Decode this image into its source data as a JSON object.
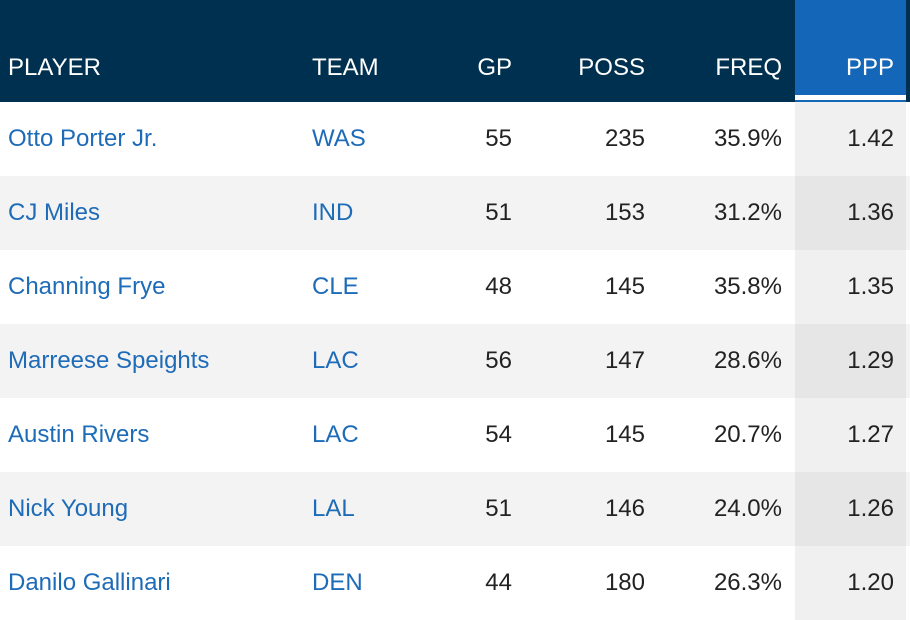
{
  "table": {
    "columns": {
      "player": "PLAYER",
      "team": "TEAM",
      "gp": "GP",
      "poss": "POSS",
      "freq": "FREQ",
      "ppp": "PPP"
    },
    "sorted_column": "PPP",
    "rows": [
      {
        "player": "Otto Porter Jr.",
        "team": "WAS",
        "gp": "55",
        "poss": "235",
        "freq": "35.9%",
        "ppp": "1.42"
      },
      {
        "player": "CJ Miles",
        "team": "IND",
        "gp": "51",
        "poss": "153",
        "freq": "31.2%",
        "ppp": "1.36"
      },
      {
        "player": "Channing Frye",
        "team": "CLE",
        "gp": "48",
        "poss": "145",
        "freq": "35.8%",
        "ppp": "1.35"
      },
      {
        "player": "Marreese Speights",
        "team": "LAC",
        "gp": "56",
        "poss": "147",
        "freq": "28.6%",
        "ppp": "1.29"
      },
      {
        "player": "Austin Rivers",
        "team": "LAC",
        "gp": "54",
        "poss": "145",
        "freq": "20.7%",
        "ppp": "1.27"
      },
      {
        "player": "Nick Young",
        "team": "LAL",
        "gp": "51",
        "poss": "146",
        "freq": "24.0%",
        "ppp": "1.26"
      },
      {
        "player": "Danilo Gallinari",
        "team": "DEN",
        "gp": "44",
        "poss": "180",
        "freq": "26.3%",
        "ppp": "1.20"
      }
    ]
  },
  "colors": {
    "header_bg": "#00304f",
    "sorted_header_bg": "#1466b8",
    "link": "#1e6bb8",
    "text": "#222222",
    "row_alt": "#f3f3f3"
  }
}
